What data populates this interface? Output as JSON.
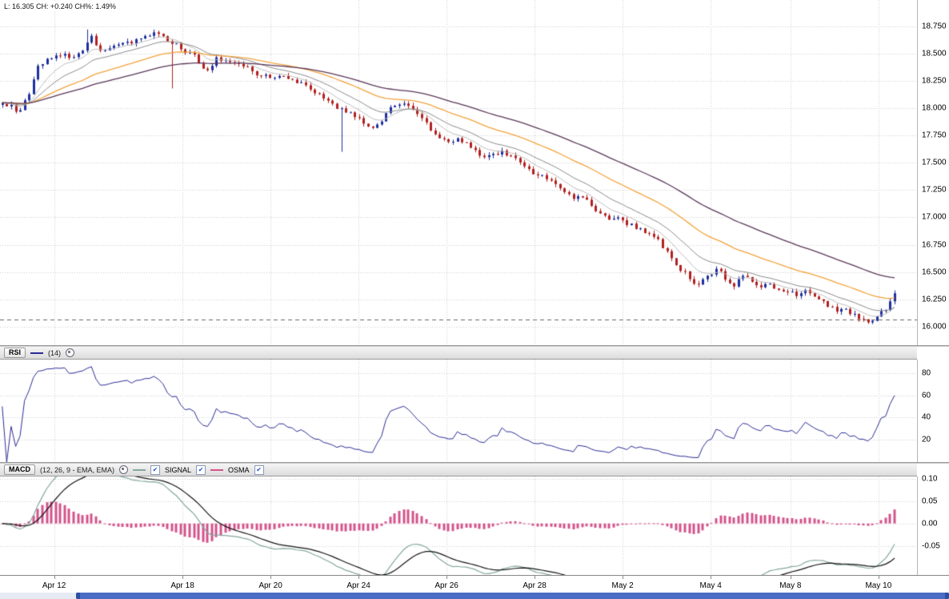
{
  "overlay": {
    "last_line": "L: 16.305 CH: +0.240 CH%: 1.49%"
  },
  "rsi_header": {
    "title": "RSI",
    "params": "(14)"
  },
  "macd_header": {
    "title": "MACD",
    "params": "(12, 26, 9 - EMA, EMA)",
    "signal_label": "SIGNAL",
    "osma_label": "OSMA"
  },
  "x_axis": {
    "labels": [
      "Apr 12",
      "Apr 18",
      "Apr 20",
      "Apr 24",
      "Apr 26",
      "Apr 28",
      "May 2",
      "May 4",
      "May 8",
      "May 10"
    ],
    "positions": [
      0.059,
      0.199,
      0.295,
      0.391,
      0.487,
      0.583,
      0.679,
      0.775,
      0.862,
      0.958
    ]
  },
  "ui_colors": {
    "grid": "#cccccc",
    "dashed_line": "#666666",
    "axis_border": "#9a9a9a",
    "scrollbar_track": "#e6eaf2",
    "scrollbar_thumb": "#4a6cc4",
    "text": "#000000"
  },
  "chart_data": [
    {
      "type": "candlestick",
      "name": "price",
      "last": 16.305,
      "change": "+0.240",
      "change_pct": "1.49%",
      "prev_close_line": 16.065,
      "ylim": [
        15.83,
        18.99
      ],
      "y_ticks": [
        18.75,
        18.5,
        18.25,
        18.0,
        17.75,
        17.5,
        17.25,
        17.0,
        16.75,
        16.5,
        16.25,
        16.0
      ],
      "y_tick_labels": [
        "18.750",
        "18.500",
        "18.250",
        "18.000",
        "17.750",
        "17.500",
        "17.250",
        "17.000",
        "16.750",
        "16.500",
        "16.250",
        "16.000"
      ],
      "up_color": "#1e2f9e",
      "down_color": "#b22020",
      "noise_seed": 7,
      "noise": 0.05,
      "micro_noise": 0.012,
      "wick": 0.03,
      "wick_events": [
        {
          "f": 0.095,
          "high": 18.72
        },
        {
          "f": 0.19,
          "low": 18.18
        },
        {
          "f": 0.378,
          "low": 17.6
        }
      ],
      "moving_averages": [
        {
          "period": 8,
          "color": "#bdbdbd"
        },
        {
          "period": 16,
          "color": "#8a8a8a"
        },
        {
          "period": 34,
          "color": "#f2a33c"
        },
        {
          "period": 60,
          "color": "#5a3758"
        }
      ],
      "closes": [
        18.05,
        18.02,
        17.97,
        18.12,
        18.38,
        18.44,
        18.48,
        18.5,
        18.46,
        18.52,
        18.65,
        18.52,
        18.55,
        18.58,
        18.6,
        18.63,
        18.66,
        18.7,
        18.66,
        18.6,
        18.55,
        18.5,
        18.42,
        18.35,
        18.46,
        18.44,
        18.41,
        18.38,
        18.34,
        18.3,
        18.27,
        18.3,
        18.26,
        18.23,
        18.2,
        18.14,
        18.08,
        18.03,
        18.0,
        17.96,
        17.9,
        17.82,
        17.85,
        17.95,
        18.02,
        18.05,
        17.99,
        17.9,
        17.8,
        17.72,
        17.68,
        17.73,
        17.68,
        17.61,
        17.54,
        17.57,
        17.61,
        17.56,
        17.5,
        17.44,
        17.39,
        17.35,
        17.3,
        17.23,
        17.16,
        17.19,
        17.11,
        17.04,
        16.97,
        16.99,
        16.93,
        16.89,
        16.86,
        16.81,
        16.73,
        16.62,
        16.52,
        16.44,
        16.39,
        16.46,
        16.53,
        16.44,
        16.37,
        16.46,
        16.41,
        16.36,
        16.39,
        16.33,
        16.31,
        16.29,
        16.33,
        16.28,
        16.23,
        16.19,
        16.15,
        16.12,
        16.08,
        16.04,
        16.1,
        16.16,
        16.305
      ]
    },
    {
      "type": "line",
      "name": "RSI",
      "period": 14,
      "ylim": [
        0,
        92
      ],
      "y_ticks": [
        80,
        60,
        40,
        20
      ],
      "y_tick_labels": [
        "80",
        "60",
        "40",
        "20"
      ],
      "color": "#2b2b96"
    },
    {
      "type": "macd",
      "name": "MACD",
      "fast": 12,
      "slow": 26,
      "signal_period": 9,
      "ylim": [
        -0.115,
        0.105
      ],
      "y_ticks": [
        0.1,
        0.05,
        0.0,
        -0.05
      ],
      "y_tick_labels": [
        "0.10",
        "0.05",
        "0.00",
        "-0.05"
      ],
      "macd_color": "#84a79e",
      "signal_color": "#141414",
      "osma_color": "#d4548c"
    }
  ]
}
